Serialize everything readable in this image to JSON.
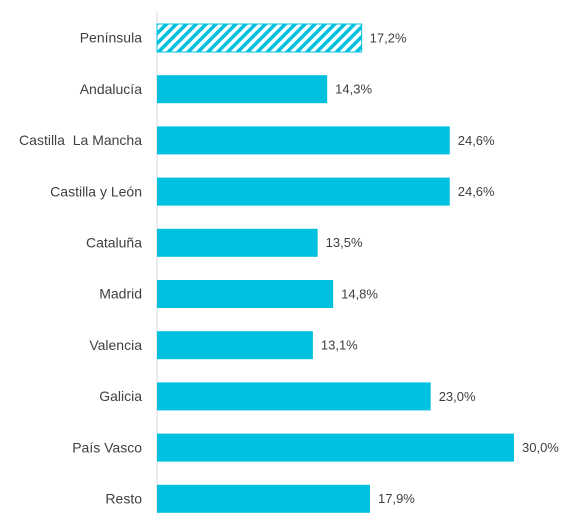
{
  "chart_data": {
    "type": "barh",
    "categories": [
      "Península",
      "Andalucía",
      "Castilla  La Mancha",
      "Castilla y León",
      "Cataluña",
      "Madrid",
      "Valencia",
      "Galicia",
      "País Vasco",
      "Resto"
    ],
    "values": [
      17.2,
      14.3,
      24.6,
      24.6,
      13.5,
      14.8,
      13.1,
      23.0,
      30.0,
      17.9
    ],
    "value_labels": [
      "17,2%",
      "14,3%",
      "24,6%",
      "24,6%",
      "13,5%",
      "14,8%",
      "13,1%",
      "23,0%",
      "30,0%",
      "17,9%"
    ],
    "color": "#00c0df",
    "hatched": [
      true,
      false,
      false,
      false,
      false,
      false,
      false,
      false,
      false,
      false
    ]
  }
}
